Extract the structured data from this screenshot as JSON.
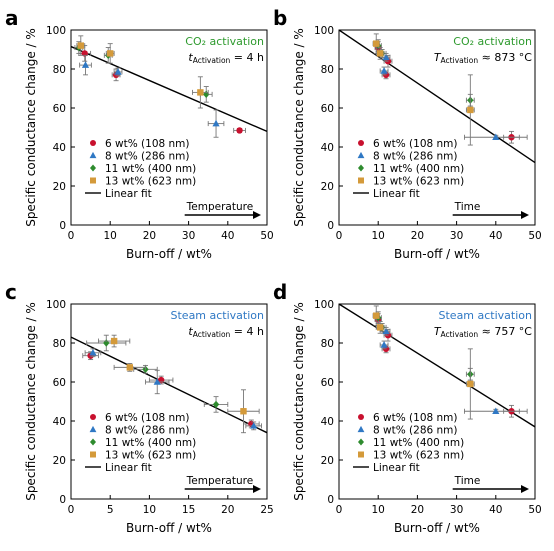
{
  "colors": {
    "series_6": "#c8102e",
    "series_8": "#2f78c4",
    "series_11": "#2e8b2e",
    "series_13": "#d49a3a",
    "co2_title": "#2e9a2e",
    "steam_title": "#2f78c4",
    "axis": "#000000",
    "errorbar": "#777777"
  },
  "chart_data": [
    {
      "panel_label": "a",
      "type": "scatter",
      "title": "CO₂ activation",
      "title_color_key": "co2_title",
      "subtitle": "t",
      "subtitle_sub": "Activation",
      "subtitle_rest": " = 4 h",
      "xlabel": "Burn-off / wt%",
      "ylabel": "Specific conductance change / %",
      "xlim": [
        0,
        50
      ],
      "ylim": [
        0,
        100
      ],
      "xticks": [
        "0",
        "10",
        "20",
        "30",
        "40",
        "50"
      ],
      "yticks": [
        "0",
        "20",
        "40",
        "60",
        "80",
        "100"
      ],
      "arrow_label": "Temperature",
      "legend_position": "lower-left",
      "fit_label": "Linear fit",
      "fit": [
        [
          0,
          91.5
        ],
        [
          50,
          48
        ]
      ],
      "series": [
        {
          "name": "6 wt% (108 nm)",
          "marker": "circle",
          "color_key": "series_6",
          "points": [
            {
              "x": 3.5,
              "y": 88,
              "xerr": 1.5,
              "yerr": 4
            },
            {
              "x": 11.5,
              "y": 77,
              "xerr": 1,
              "yerr": 3
            },
            {
              "x": 43,
              "y": 48.5,
              "xerr": 1.5,
              "yerr": 1
            }
          ]
        },
        {
          "name": "8 wt% (286 nm)",
          "marker": "triangle",
          "color_key": "series_8",
          "points": [
            {
              "x": 3.7,
              "y": 82,
              "xerr": 1.5,
              "yerr": 5
            },
            {
              "x": 12,
              "y": 78.5,
              "xerr": 1,
              "yerr": 2
            },
            {
              "x": 37,
              "y": 52,
              "xerr": 2,
              "yerr": 7
            }
          ]
        },
        {
          "name": "11 wt% (400 nm)",
          "marker": "diamond",
          "color_key": "series_11",
          "points": [
            {
              "x": 2,
              "y": 91,
              "xerr": 1,
              "yerr": 3
            },
            {
              "x": 9.5,
              "y": 87,
              "xerr": 1,
              "yerr": 4
            },
            {
              "x": 34.5,
              "y": 67,
              "xerr": 1.5,
              "yerr": 4
            }
          ]
        },
        {
          "name": "13 wt% (623 nm)",
          "marker": "square",
          "color_key": "series_13",
          "points": [
            {
              "x": 2.5,
              "y": 92,
              "xerr": 1,
              "yerr": 5
            },
            {
              "x": 10,
              "y": 88,
              "xerr": 1,
              "yerr": 5
            },
            {
              "x": 33,
              "y": 68,
              "xerr": 2,
              "yerr": 8
            }
          ]
        }
      ]
    },
    {
      "panel_label": "b",
      "type": "scatter",
      "title": "CO₂ activation",
      "title_color_key": "co2_title",
      "subtitle": "T",
      "subtitle_sub": "Activation",
      "subtitle_rest": " ≈ 873 °C",
      "xlabel": "Burn-off / wt%",
      "ylabel": "Specific conductance change / %",
      "xlim": [
        0,
        50
      ],
      "ylim": [
        0,
        100
      ],
      "xticks": [
        "0",
        "10",
        "20",
        "30",
        "40",
        "50"
      ],
      "yticks": [
        "0",
        "20",
        "40",
        "60",
        "80",
        "100"
      ],
      "arrow_label": "Time",
      "legend_position": "lower-left",
      "fit_label": "Linear fit",
      "fit": [
        [
          0,
          100
        ],
        [
          50,
          32
        ]
      ],
      "series": [
        {
          "name": "6 wt% (108 nm)",
          "marker": "circle",
          "color_key": "series_6",
          "points": [
            {
              "x": 10,
              "y": 91,
              "xerr": 0.8,
              "yerr": 3
            },
            {
              "x": 12,
              "y": 77,
              "xerr": 1,
              "yerr": 2
            },
            {
              "x": 12.5,
              "y": 84,
              "xerr": 1,
              "yerr": 3
            },
            {
              "x": 44,
              "y": 45,
              "xerr": 2,
              "yerr": 3
            }
          ]
        },
        {
          "name": "8 wt% (286 nm)",
          "marker": "triangle",
          "color_key": "series_8",
          "points": [
            {
              "x": 11.5,
              "y": 79,
              "xerr": 1,
              "yerr": 2
            },
            {
              "x": 12,
              "y": 86,
              "xerr": 1,
              "yerr": 2
            },
            {
              "x": 40,
              "y": 45,
              "xerr": 8,
              "yerr": 1
            }
          ]
        },
        {
          "name": "11 wt% (400 nm)",
          "marker": "diamond",
          "color_key": "series_11",
          "points": [
            {
              "x": 10,
              "y": 92,
              "xerr": 0.8,
              "yerr": 3
            },
            {
              "x": 11,
              "y": 88,
              "xerr": 1,
              "yerr": 2
            },
            {
              "x": 33.5,
              "y": 64,
              "xerr": 1,
              "yerr": 3
            }
          ]
        },
        {
          "name": "13 wt% (623 nm)",
          "marker": "square",
          "color_key": "series_13",
          "points": [
            {
              "x": 9.5,
              "y": 93,
              "xerr": 0.8,
              "yerr": 5
            },
            {
              "x": 10.5,
              "y": 88,
              "xerr": 1,
              "yerr": 3
            },
            {
              "x": 33.5,
              "y": 59,
              "xerr": 1,
              "yerr": 18
            }
          ]
        }
      ]
    },
    {
      "panel_label": "c",
      "type": "scatter",
      "title": "Steam activation",
      "title_color_key": "steam_title",
      "subtitle": "t",
      "subtitle_sub": "Activation",
      "subtitle_rest": " = 4 h",
      "xlabel": "Burn-off / wt%",
      "ylabel": "Specific conductance change / %",
      "xlim": [
        0,
        25
      ],
      "ylim": [
        0,
        100
      ],
      "xticks": [
        "0",
        "5",
        "10",
        "15",
        "20",
        "25"
      ],
      "yticks": [
        "0",
        "20",
        "40",
        "60",
        "80",
        "100"
      ],
      "arrow_label": "Temperature",
      "legend_position": "lower-left",
      "fit_label": "Linear fit",
      "fit": [
        [
          0,
          83
        ],
        [
          25,
          34
        ]
      ],
      "series": [
        {
          "name": "6 wt% (108 nm)",
          "marker": "circle",
          "color_key": "series_6",
          "points": [
            {
              "x": 2.5,
              "y": 73.5,
              "xerr": 1,
              "yerr": 2
            },
            {
              "x": 11.5,
              "y": 61,
              "xerr": 1.5,
              "yerr": 2
            },
            {
              "x": 23,
              "y": 38.5,
              "xerr": 1,
              "yerr": 2
            }
          ]
        },
        {
          "name": "8 wt% (286 nm)",
          "marker": "triangle",
          "color_key": "series_8",
          "points": [
            {
              "x": 2.8,
              "y": 75,
              "xerr": 1,
              "yerr": 2
            },
            {
              "x": 11,
              "y": 60,
              "xerr": 1.5,
              "yerr": 6
            },
            {
              "x": 23.3,
              "y": 37.5,
              "xerr": 1,
              "yerr": 2
            }
          ]
        },
        {
          "name": "11 wt% (400 nm)",
          "marker": "diamond",
          "color_key": "series_11",
          "points": [
            {
              "x": 4.5,
              "y": 80,
              "xerr": 2.5,
              "yerr": 4
            },
            {
              "x": 9.5,
              "y": 66.5,
              "xerr": 1.5,
              "yerr": 2
            },
            {
              "x": 18.5,
              "y": 48.5,
              "xerr": 1.5,
              "yerr": 4
            }
          ]
        },
        {
          "name": "13 wt% (623 nm)",
          "marker": "square",
          "color_key": "series_13",
          "points": [
            {
              "x": 5.5,
              "y": 81,
              "xerr": 2,
              "yerr": 3
            },
            {
              "x": 7.5,
              "y": 67.5,
              "xerr": 2,
              "yerr": 2
            },
            {
              "x": 22,
              "y": 45,
              "xerr": 2,
              "yerr": 11
            }
          ]
        }
      ]
    },
    {
      "panel_label": "d",
      "type": "scatter",
      "title": "Steam activation",
      "title_color_key": "steam_title",
      "subtitle": "T",
      "subtitle_sub": "Activation",
      "subtitle_rest": " ≈ 757 °C",
      "xlabel": "Burn-off / wt%",
      "ylabel": "Specific conductance change / %",
      "xlim": [
        0,
        50
      ],
      "ylim": [
        0,
        100
      ],
      "xticks": [
        "0",
        "10",
        "20",
        "30",
        "40",
        "50"
      ],
      "yticks": [
        "0",
        "20",
        "40",
        "60",
        "80",
        "100"
      ],
      "arrow_label": "Time",
      "legend_position": "lower-left",
      "fit_label": "Linear fit",
      "fit": [
        [
          0,
          100
        ],
        [
          50,
          37
        ]
      ],
      "series": [
        {
          "name": "6 wt% (108 nm)",
          "marker": "circle",
          "color_key": "series_6",
          "points": [
            {
              "x": 10,
              "y": 92,
              "xerr": 0.8,
              "yerr": 3
            },
            {
              "x": 12,
              "y": 77,
              "xerr": 1,
              "yerr": 2
            },
            {
              "x": 12.5,
              "y": 84,
              "xerr": 1,
              "yerr": 3
            },
            {
              "x": 44,
              "y": 45,
              "xerr": 2,
              "yerr": 3
            }
          ]
        },
        {
          "name": "8 wt% (286 nm)",
          "marker": "triangle",
          "color_key": "series_8",
          "points": [
            {
              "x": 11.5,
              "y": 79,
              "xerr": 1,
              "yerr": 2
            },
            {
              "x": 12,
              "y": 86,
              "xerr": 1,
              "yerr": 2
            },
            {
              "x": 40,
              "y": 45,
              "xerr": 8,
              "yerr": 1
            }
          ]
        },
        {
          "name": "11 wt% (400 nm)",
          "marker": "diamond",
          "color_key": "series_11",
          "points": [
            {
              "x": 10,
              "y": 93,
              "xerr": 0.8,
              "yerr": 3
            },
            {
              "x": 11,
              "y": 88,
              "xerr": 1,
              "yerr": 2
            },
            {
              "x": 33.5,
              "y": 64,
              "xerr": 1,
              "yerr": 3
            }
          ]
        },
        {
          "name": "13 wt% (623 nm)",
          "marker": "square",
          "color_key": "series_13",
          "points": [
            {
              "x": 9.5,
              "y": 94,
              "xerr": 0.8,
              "yerr": 5
            },
            {
              "x": 10.5,
              "y": 88,
              "xerr": 1,
              "yerr": 3
            },
            {
              "x": 33.5,
              "y": 59,
              "xerr": 1,
              "yerr": 18
            }
          ]
        }
      ]
    }
  ]
}
